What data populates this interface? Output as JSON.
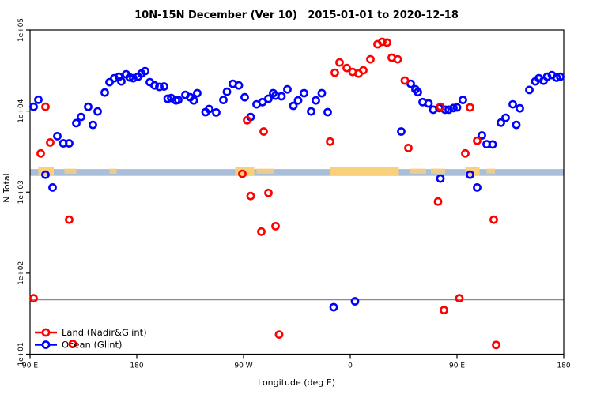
{
  "chart_data": {
    "type": "scatter",
    "title": "10N-15N December (Ver 10)   2015-01-01 to 2020-12-18",
    "xlabel": "Longitude (deg E)",
    "ylabel": "N Total",
    "x_axis": {
      "min": 90,
      "max": 540,
      "ticks": [
        {
          "lon": 90,
          "label": "90 E"
        },
        {
          "lon": 180,
          "label": "180"
        },
        {
          "lon": 270,
          "label": "90 W"
        },
        {
          "lon": 360,
          "label": "0"
        },
        {
          "lon": 450,
          "label": "90 E"
        },
        {
          "lon": 540,
          "label": "180"
        }
      ]
    },
    "y_axis": {
      "scale": "log",
      "min": 10,
      "max": 100000,
      "ticks": [
        {
          "value": 10,
          "label": "1e+01"
        },
        {
          "value": 100,
          "label": "1e+02"
        },
        {
          "value": 1000,
          "label": "1e+03"
        },
        {
          "value": 10000,
          "label": "1e+04"
        },
        {
          "value": 100000,
          "label": "1e+05"
        }
      ]
    },
    "reference_line": {
      "value": 47,
      "color": "#8a8a8a"
    },
    "map_strip": {
      "ocean_color": "#a9bfd9",
      "land_color": "#fbd07c",
      "center_value": 1750,
      "land_segments": [
        {
          "from": 97,
          "to": 110,
          "style": "solid"
        },
        {
          "from": 119,
          "to": 129,
          "style": "speckle"
        },
        {
          "from": 157,
          "to": 163,
          "style": "speckle"
        },
        {
          "from": 263,
          "to": 279,
          "style": "solid"
        },
        {
          "from": 281,
          "to": 296,
          "style": "speckle"
        },
        {
          "from": 343,
          "to": 401,
          "style": "solid"
        },
        {
          "from": 410,
          "to": 424,
          "style": "speckle"
        },
        {
          "from": 428,
          "to": 440,
          "style": "speckle"
        },
        {
          "from": 457,
          "to": 469,
          "style": "solid"
        },
        {
          "from": 475,
          "to": 482,
          "style": "speckle"
        }
      ]
    },
    "series": [
      {
        "name": "Ocean (Glint)",
        "color": "#0000ff",
        "points": [
          [
            93,
            11300
          ],
          [
            97,
            13800
          ],
          [
            103,
            1640
          ],
          [
            109,
            1140
          ],
          [
            113,
            4900
          ],
          [
            118,
            4000
          ],
          [
            123,
            4000
          ],
          [
            129,
            7100
          ],
          [
            133,
            8450
          ],
          [
            139,
            11300
          ],
          [
            143,
            6750
          ],
          [
            147,
            9900
          ],
          [
            153,
            16900
          ],
          [
            157,
            22700
          ],
          [
            161,
            25400
          ],
          [
            165,
            26500
          ],
          [
            167,
            23200
          ],
          [
            171,
            28400
          ],
          [
            174,
            26000
          ],
          [
            177,
            25400
          ],
          [
            181,
            26500
          ],
          [
            184,
            29000
          ],
          [
            187,
            31100
          ],
          [
            191,
            22700
          ],
          [
            195,
            20700
          ],
          [
            199,
            19900
          ],
          [
            203,
            20100
          ],
          [
            206,
            14200
          ],
          [
            209,
            14500
          ],
          [
            213,
            13500
          ],
          [
            215,
            13700
          ],
          [
            221,
            15800
          ],
          [
            225,
            14800
          ],
          [
            228,
            13500
          ],
          [
            231,
            16600
          ],
          [
            238,
            9700
          ],
          [
            241,
            10600
          ],
          [
            247,
            9600
          ],
          [
            253,
            13700
          ],
          [
            256,
            17300
          ],
          [
            261,
            21700
          ],
          [
            266,
            20700
          ],
          [
            271,
            14800
          ],
          [
            276,
            8450
          ],
          [
            281,
            12100
          ],
          [
            286,
            12900
          ],
          [
            291,
            14200
          ],
          [
            295,
            16600
          ],
          [
            297,
            15500
          ],
          [
            302,
            15200
          ],
          [
            307,
            18500
          ],
          [
            312,
            11600
          ],
          [
            316,
            13500
          ],
          [
            321,
            16600
          ],
          [
            327,
            9900
          ],
          [
            331,
            13500
          ],
          [
            336,
            16600
          ],
          [
            341,
            9700
          ],
          [
            346,
            38
          ],
          [
            364,
            45
          ],
          [
            403,
            5600
          ],
          [
            411,
            21700
          ],
          [
            415,
            18500
          ],
          [
            417,
            17100
          ],
          [
            421,
            12900
          ],
          [
            426,
            12400
          ],
          [
            430,
            10400
          ],
          [
            435,
            10900
          ],
          [
            436,
            1470
          ],
          [
            440,
            10400
          ],
          [
            443,
            10400
          ],
          [
            447,
            10900
          ],
          [
            450,
            11100
          ],
          [
            455,
            13700
          ],
          [
            461,
            1640
          ],
          [
            467,
            1140
          ],
          [
            471,
            5000
          ],
          [
            475,
            3900
          ],
          [
            480,
            3870
          ],
          [
            487,
            7200
          ],
          [
            491,
            8260
          ],
          [
            497,
            12100
          ],
          [
            500,
            6750
          ],
          [
            503,
            10800
          ],
          [
            511,
            18200
          ],
          [
            516,
            23200
          ],
          [
            519,
            25400
          ],
          [
            523,
            23700
          ],
          [
            526,
            26500
          ],
          [
            530,
            27800
          ],
          [
            534,
            25800
          ],
          [
            537,
            26500
          ]
        ]
      },
      {
        "name": "Land (Nadir&Glint)",
        "color": "#ff0000",
        "points": [
          [
            93,
            49
          ],
          [
            99,
            3000
          ],
          [
            103,
            11300
          ],
          [
            107,
            4100
          ],
          [
            123,
            456
          ],
          [
            126,
            13.4
          ],
          [
            269,
            1680
          ],
          [
            273,
            7700
          ],
          [
            276,
            894
          ],
          [
            285,
            325
          ],
          [
            287,
            5600
          ],
          [
            291,
            977
          ],
          [
            297,
            380
          ],
          [
            300,
            17.5
          ],
          [
            343,
            4200
          ],
          [
            347,
            29700
          ],
          [
            351,
            39800
          ],
          [
            357,
            34000
          ],
          [
            362,
            30400
          ],
          [
            367,
            29000
          ],
          [
            371,
            31800
          ],
          [
            377,
            43500
          ],
          [
            383,
            66700
          ],
          [
            387,
            71400
          ],
          [
            391,
            70000
          ],
          [
            395,
            45600
          ],
          [
            400,
            43500
          ],
          [
            406,
            23800
          ],
          [
            409,
            3500
          ],
          [
            434,
            764
          ],
          [
            436,
            11300
          ],
          [
            439,
            35
          ],
          [
            452,
            49
          ],
          [
            457,
            3000
          ],
          [
            461,
            11100
          ],
          [
            467,
            4300
          ],
          [
            481,
            456
          ],
          [
            483,
            13
          ]
        ]
      }
    ],
    "legend": {
      "position": "bottom-left",
      "items": [
        {
          "label": "Land (Nadir&Glint)",
          "color": "#ff0000"
        },
        {
          "label": "Ocean (Glint)",
          "color": "#0000ff"
        }
      ]
    }
  }
}
